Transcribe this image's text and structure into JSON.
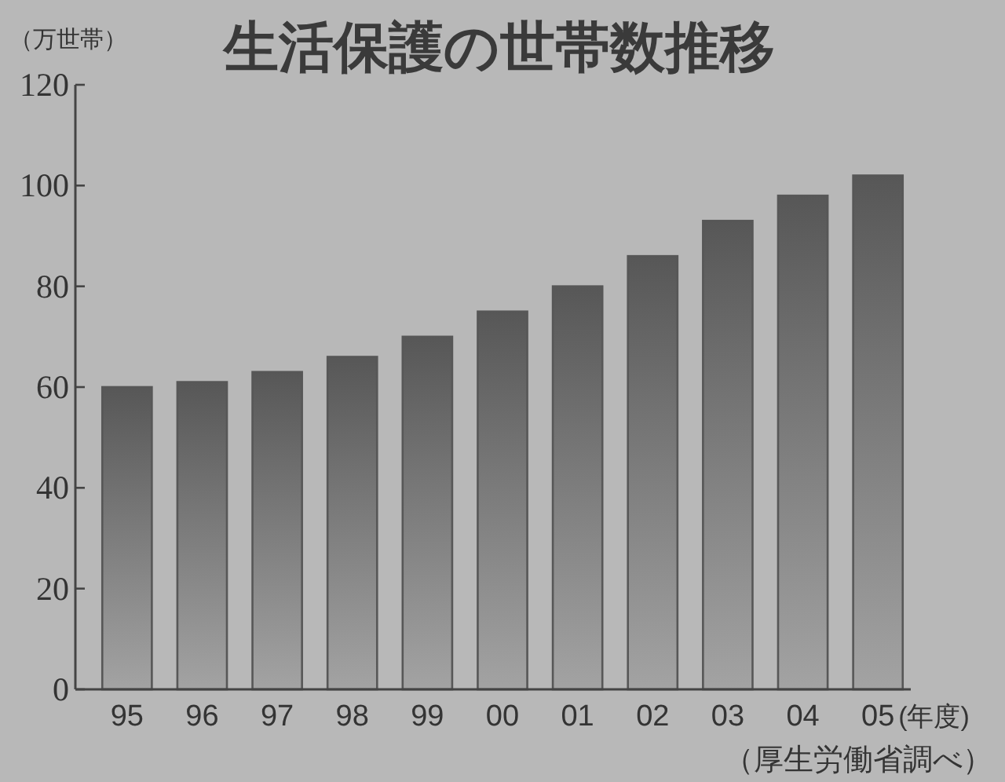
{
  "chart_data": {
    "type": "bar",
    "title": "生活保護の世帯数推移",
    "ylabel": "（万世帯）",
    "xlabel": "(年度)",
    "annotations": [
      "（厚生労働省調べ）"
    ],
    "categories": [
      "95",
      "96",
      "97",
      "98",
      "99",
      "00",
      "01",
      "02",
      "03",
      "04",
      "05"
    ],
    "values": [
      60,
      61,
      63,
      66,
      70,
      75,
      80,
      86,
      93,
      98,
      102
    ],
    "color": "#575757",
    "ylim": [
      0,
      120
    ],
    "yticks": [
      0,
      20,
      40,
      60,
      80,
      100,
      120
    ],
    "grid": false
  }
}
